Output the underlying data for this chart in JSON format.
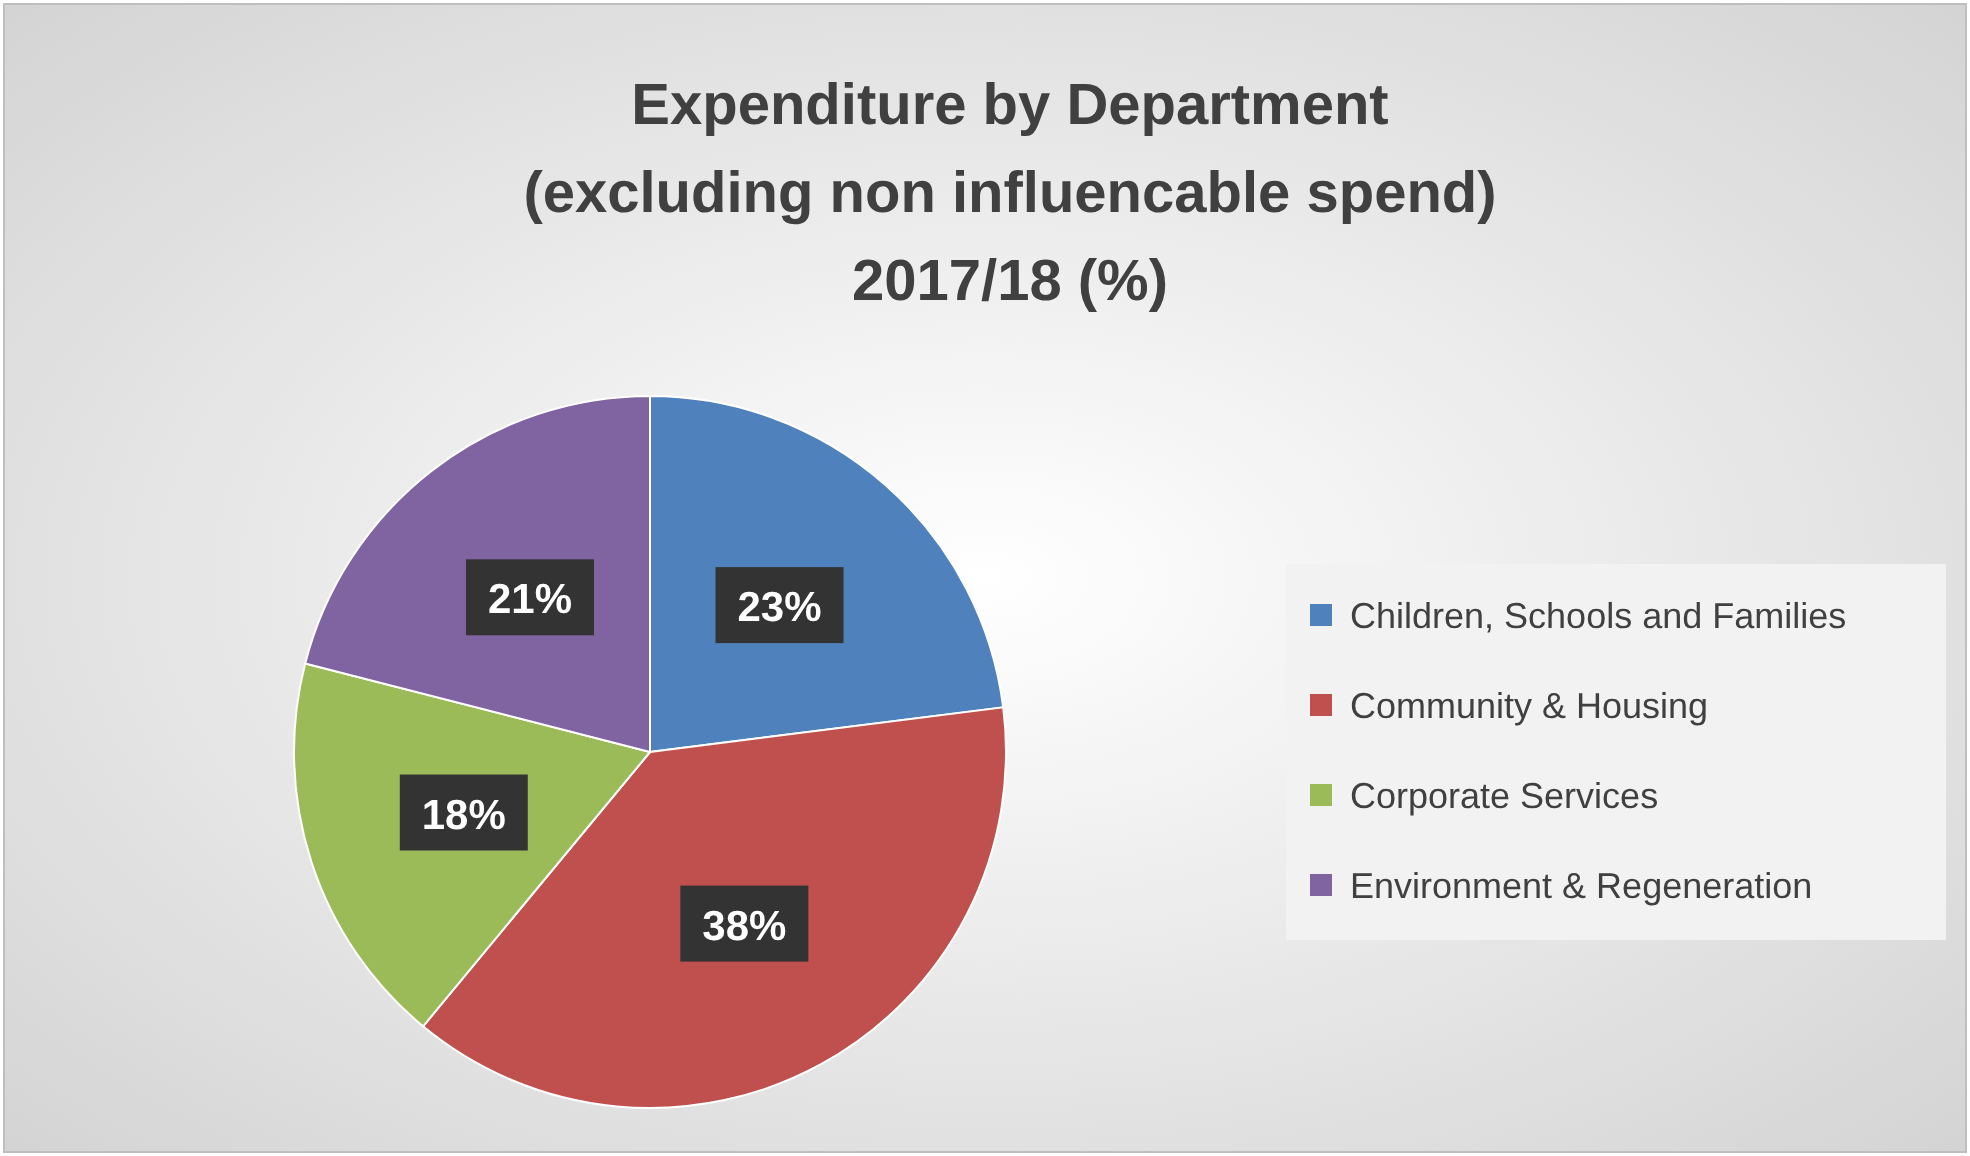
{
  "chart_data": {
    "type": "pie",
    "title": "Expenditure by Department\n(excluding non influencable spend)\n2017/18 (%)",
    "categories": [
      "Children, Schools and Families",
      "Community & Housing",
      "Corporate Services",
      "Environment & Regeneration"
    ],
    "values": [
      23,
      38,
      18,
      21
    ],
    "colors": [
      "#4f81bd",
      "#c0504d",
      "#9bbb59",
      "#8064a2"
    ],
    "value_labels": [
      "23%",
      "38%",
      "18%",
      "21%"
    ],
    "legend": "right"
  }
}
